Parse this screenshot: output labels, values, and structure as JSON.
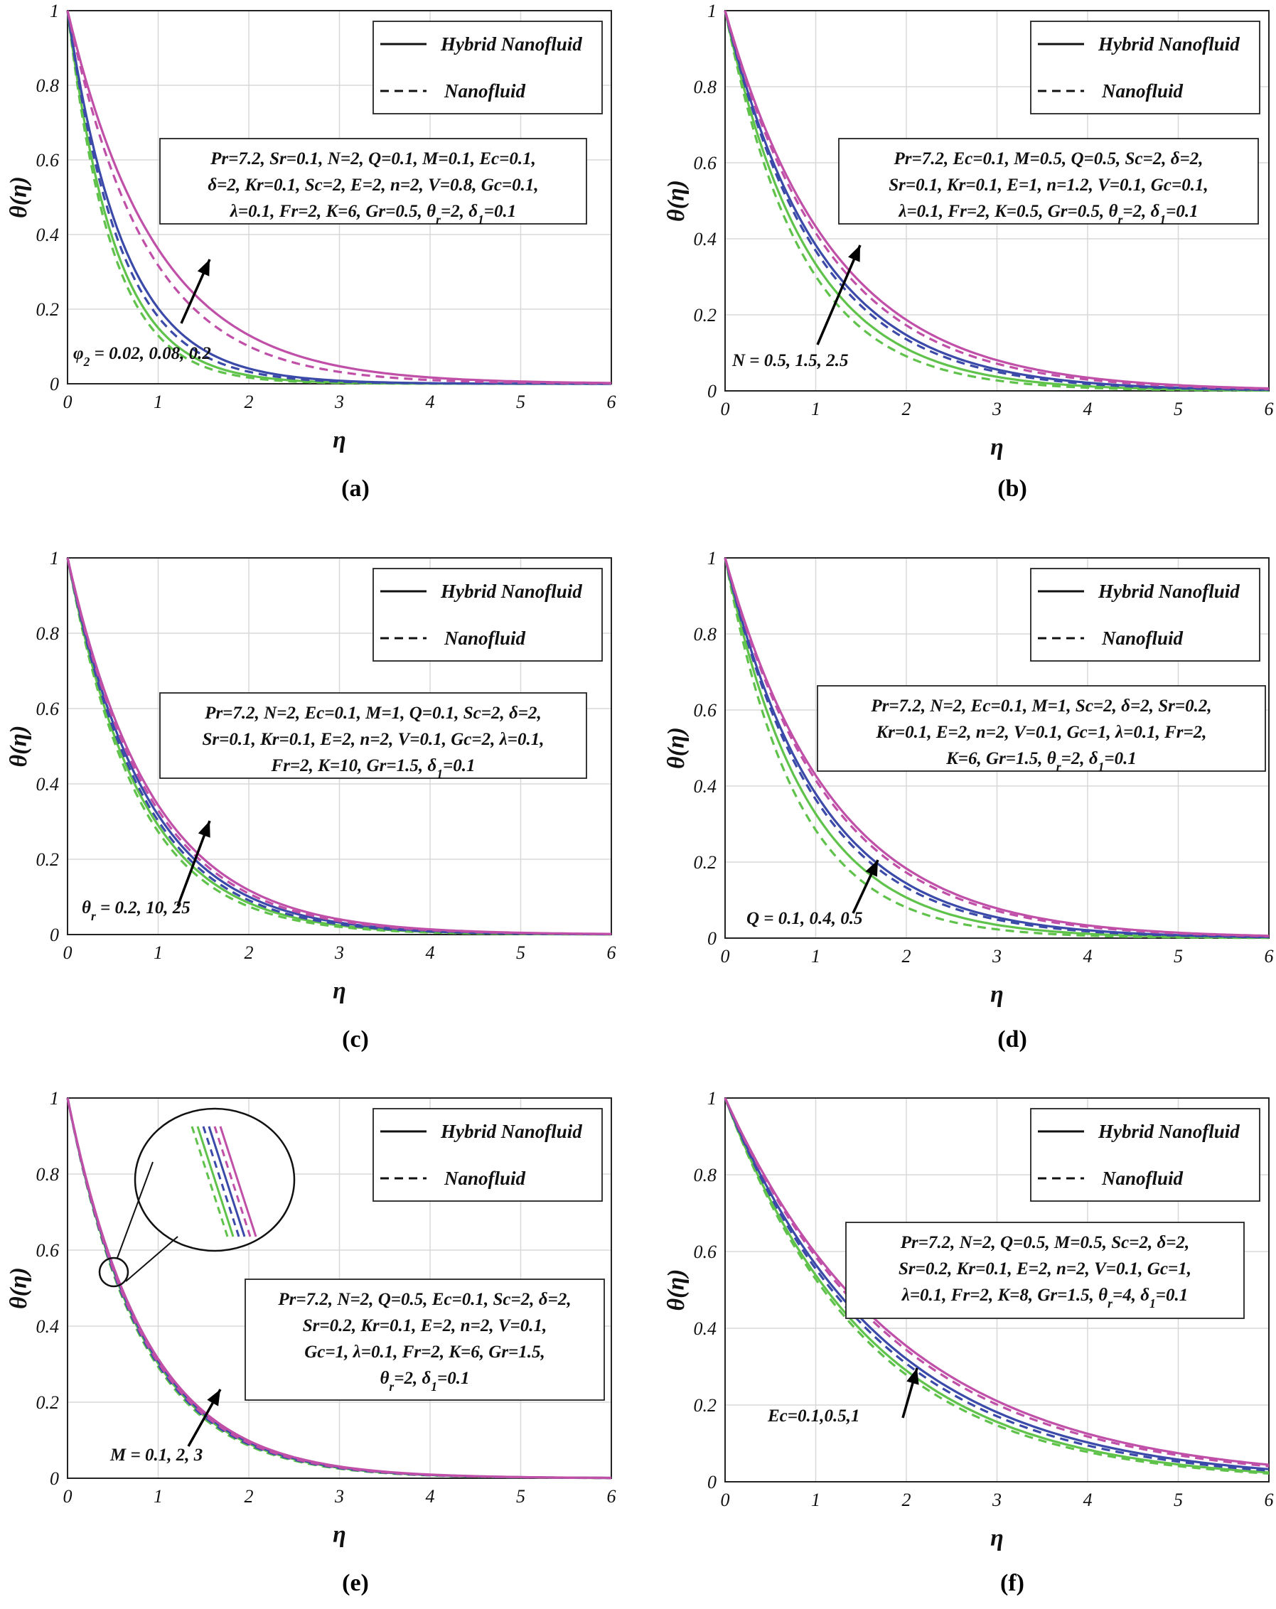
{
  "figure": {
    "colors": {
      "green": "#5fc24a",
      "blue": "#3b4aa8",
      "magenta": "#c04fa8",
      "grid": "#d8d8d8",
      "axis": "#222222"
    }
  },
  "legend": {
    "hybrid": "Hybrid Nanofluid",
    "nano": "Nanofluid"
  },
  "chart_data": [
    {
      "panel": "a",
      "caption": "(a)",
      "type": "line",
      "xlabel": "η",
      "ylabel": "θ(η)",
      "xlim": [
        0,
        6
      ],
      "ylim": [
        0,
        1
      ],
      "xticks": [
        "0",
        "1",
        "2",
        "3",
        "4",
        "5",
        "6"
      ],
      "yticks": [
        "0",
        "0.2",
        "0.4",
        "0.6",
        "0.8",
        "1"
      ],
      "params": [
        "Pr=7.2, Sr=0.1, N=2, Q=0.1, M=0.1, Ec=0.1,",
        "δ=2, Kr=0.1, Sc=2, E=2, n=2, V=0.8, Gc=0.1,",
        "λ=0.1, Fr=2, K=6, Gr=0.5, θr=2, δ1=0.1"
      ],
      "annotation": "φ2 = 0.02, 0.08, 0.2",
      "series": [
        {
          "name": "φ2=0.02 Hybrid Nanofluid",
          "color": "green",
          "dash": false,
          "decay": 1.9
        },
        {
          "name": "φ2=0.02 Nanofluid",
          "color": "green",
          "dash": true,
          "decay": 2.05
        },
        {
          "name": "φ2=0.08 Hybrid Nanofluid",
          "color": "blue",
          "dash": false,
          "decay": 1.6
        },
        {
          "name": "φ2=0.08 Nanofluid",
          "color": "blue",
          "dash": true,
          "decay": 1.72
        },
        {
          "name": "φ2=0.2 Hybrid Nanofluid",
          "color": "magenta",
          "dash": false,
          "decay": 1.02
        },
        {
          "name": "φ2=0.2 Nanofluid",
          "color": "magenta",
          "dash": true,
          "decay": 1.15
        }
      ]
    },
    {
      "panel": "b",
      "caption": "(b)",
      "type": "line",
      "xlabel": "η",
      "ylabel": "θ(η)",
      "xlim": [
        0,
        6
      ],
      "ylim": [
        0,
        1
      ],
      "xticks": [
        "0",
        "1",
        "2",
        "3",
        "4",
        "5",
        "6"
      ],
      "yticks": [
        "0",
        "0.2",
        "0.4",
        "0.6",
        "0.8",
        "1"
      ],
      "params": [
        "Pr=7.2, Ec=0.1, M=0.5, Q=0.5, Sc=2, δ=2,",
        "Sr=0.1, Kr=0.1, E=1, n=1.2, V=0.1, Gc=0.1,",
        "λ=0.1, Fr=2, K=0.5, Gr=0.5, θr=2, δ1=0.1"
      ],
      "annotation": "N = 0.5, 1.5, 2.5",
      "series": [
        {
          "name": "N=0.5 Hybrid Nanofluid",
          "color": "green",
          "dash": false,
          "decay": 1.1
        },
        {
          "name": "N=0.5 Nanofluid",
          "color": "green",
          "dash": true,
          "decay": 1.2
        },
        {
          "name": "N=1.5 Hybrid Nanofluid",
          "color": "blue",
          "dash": false,
          "decay": 0.96
        },
        {
          "name": "N=1.5 Nanofluid",
          "color": "blue",
          "dash": true,
          "decay": 1.0
        },
        {
          "name": "N=2.5 Hybrid Nanofluid",
          "color": "magenta",
          "dash": false,
          "decay": 0.84
        },
        {
          "name": "N=2.5 Nanofluid",
          "color": "magenta",
          "dash": true,
          "decay": 0.88
        }
      ]
    },
    {
      "panel": "c",
      "caption": "(c)",
      "type": "line",
      "xlabel": "η",
      "ylabel": "θ(η)",
      "xlim": [
        0,
        6
      ],
      "ylim": [
        0,
        1
      ],
      "xticks": [
        "0",
        "1",
        "2",
        "3",
        "4",
        "5",
        "6"
      ],
      "yticks": [
        "0",
        "0.2",
        "0.4",
        "0.6",
        "0.8",
        "1"
      ],
      "params": [
        "Pr=7.2, N=2, Ec=0.1, M=1, Q=0.1, Sc=2, δ=2,",
        "Sr=0.1, Kr=0.1, E=2, n=2, V=0.1, Gc=2, λ=0.1,",
        "Fr=2, K=10, Gr=1.5, δ1=0.1"
      ],
      "annotation": "θr = 0.2, 10, 25",
      "series": [
        {
          "name": "θr=0.2 Hybrid Nanofluid",
          "color": "green",
          "dash": false,
          "decay": 1.24
        },
        {
          "name": "θr=0.2 Nanofluid",
          "color": "green",
          "dash": true,
          "decay": 1.3
        },
        {
          "name": "θr=10 Hybrid Nanofluid",
          "color": "blue",
          "dash": false,
          "decay": 1.15
        },
        {
          "name": "θr=10 Nanofluid",
          "color": "blue",
          "dash": true,
          "decay": 1.2
        },
        {
          "name": "θr=25 Hybrid Nanofluid",
          "color": "magenta",
          "dash": false,
          "decay": 1.07
        },
        {
          "name": "θr=25 Nanofluid",
          "color": "magenta",
          "dash": true,
          "decay": 1.11
        }
      ]
    },
    {
      "panel": "d",
      "caption": "(d)",
      "type": "line",
      "xlabel": "η",
      "ylabel": "θ(η)",
      "xlim": [
        0,
        6
      ],
      "ylim": [
        0,
        1
      ],
      "xticks": [
        "0",
        "1",
        "2",
        "3",
        "4",
        "5",
        "6"
      ],
      "yticks": [
        "0",
        "0.2",
        "0.4",
        "0.6",
        "0.8",
        "1"
      ],
      "params": [
        "Pr=7.2, N=2, Ec=0.1, M=1, Sc=2, δ=2, Sr=0.2,",
        "Kr=0.1, E=2, n=2, V=0.1, Gc=1, λ=0.1, Fr=2,",
        "K=6, Gr=1.5, θr=2, δ1=0.1"
      ],
      "annotation": "Q = 0.1, 0.4, 0.5",
      "series": [
        {
          "name": "Q=0.1 Hybrid Nanofluid",
          "color": "green",
          "dash": false,
          "decay": 1.12
        },
        {
          "name": "Q=0.1 Nanofluid",
          "color": "green",
          "dash": true,
          "decay": 1.26
        },
        {
          "name": "Q=0.4 Hybrid Nanofluid",
          "color": "blue",
          "dash": false,
          "decay": 0.97
        },
        {
          "name": "Q=0.4 Nanofluid",
          "color": "blue",
          "dash": true,
          "decay": 1.01
        },
        {
          "name": "Q=0.5 Hybrid Nanofluid",
          "color": "magenta",
          "dash": false,
          "decay": 0.85
        },
        {
          "name": "Q=0.5 Nanofluid",
          "color": "magenta",
          "dash": true,
          "decay": 0.88
        }
      ]
    },
    {
      "panel": "e",
      "caption": "(e)",
      "type": "line",
      "xlabel": "η",
      "ylabel": "θ(η)",
      "xlim": [
        0,
        6
      ],
      "ylim": [
        0,
        1
      ],
      "xticks": [
        "0",
        "1",
        "2",
        "3",
        "4",
        "5",
        "6"
      ],
      "yticks": [
        "0",
        "0.2",
        "0.4",
        "0.6",
        "0.8",
        "1"
      ],
      "params": [
        "Pr=7.2, N=2, Q=0.5, Ec=0.1, Sc=2, δ=2,",
        "Sr=0.2, Kr=0.1, E=2, n=2, V=0.1,",
        "Gc=1, λ=0.1, Fr=2, K=6, Gr=1.5,",
        "θr=2, δ1=0.1"
      ],
      "annotation": "M = 0.1, 2, 3",
      "series": [
        {
          "name": "M=0.1 Hybrid Nanofluid",
          "color": "green",
          "dash": false,
          "decay": 1.2
        },
        {
          "name": "M=0.1 Nanofluid",
          "color": "green",
          "dash": true,
          "decay": 1.23
        },
        {
          "name": "M=2 Hybrid Nanofluid",
          "color": "blue",
          "dash": false,
          "decay": 1.18
        },
        {
          "name": "M=2 Nanofluid",
          "color": "blue",
          "dash": true,
          "decay": 1.21
        },
        {
          "name": "M=3 Hybrid Nanofluid",
          "color": "magenta",
          "dash": false,
          "decay": 1.16
        },
        {
          "name": "M=3 Nanofluid",
          "color": "magenta",
          "dash": true,
          "decay": 1.19
        }
      ]
    },
    {
      "panel": "f",
      "caption": "(f)",
      "type": "line",
      "xlabel": "η",
      "ylabel": "θ(η)",
      "xlim": [
        0,
        6
      ],
      "ylim": [
        0,
        1
      ],
      "xticks": [
        "0",
        "1",
        "2",
        "3",
        "4",
        "5",
        "6"
      ],
      "yticks": [
        "0",
        "0.2",
        "0.4",
        "0.6",
        "0.8",
        "1"
      ],
      "params": [
        "Pr=7.2, N=2, Q=0.5, M=0.5, Sc=2, δ=2,",
        "Sr=0.2, Kr=0.1, E=2, n=2, V=0.1, Gc=1,",
        "λ=0.1, Fr=2, K=8, Gr=1.5, θr=4, δ1=0.1"
      ],
      "annotation": "Ec=0.1,0.5,1",
      "series": [
        {
          "name": "Ec=0.1 Hybrid Nanofluid",
          "color": "green",
          "dash": false,
          "decay": 0.62
        },
        {
          "name": "Ec=0.1 Nanofluid",
          "color": "green",
          "dash": true,
          "decay": 0.64
        },
        {
          "name": "Ec=0.5 Hybrid Nanofluid",
          "color": "blue",
          "dash": false,
          "decay": 0.57
        },
        {
          "name": "Ec=0.5 Nanofluid",
          "color": "blue",
          "dash": true,
          "decay": 0.59
        },
        {
          "name": "Ec=1 Hybrid Nanofluid",
          "color": "magenta",
          "dash": false,
          "decay": 0.52
        },
        {
          "name": "Ec=1 Nanofluid",
          "color": "magenta",
          "dash": true,
          "decay": 0.535
        }
      ]
    }
  ]
}
